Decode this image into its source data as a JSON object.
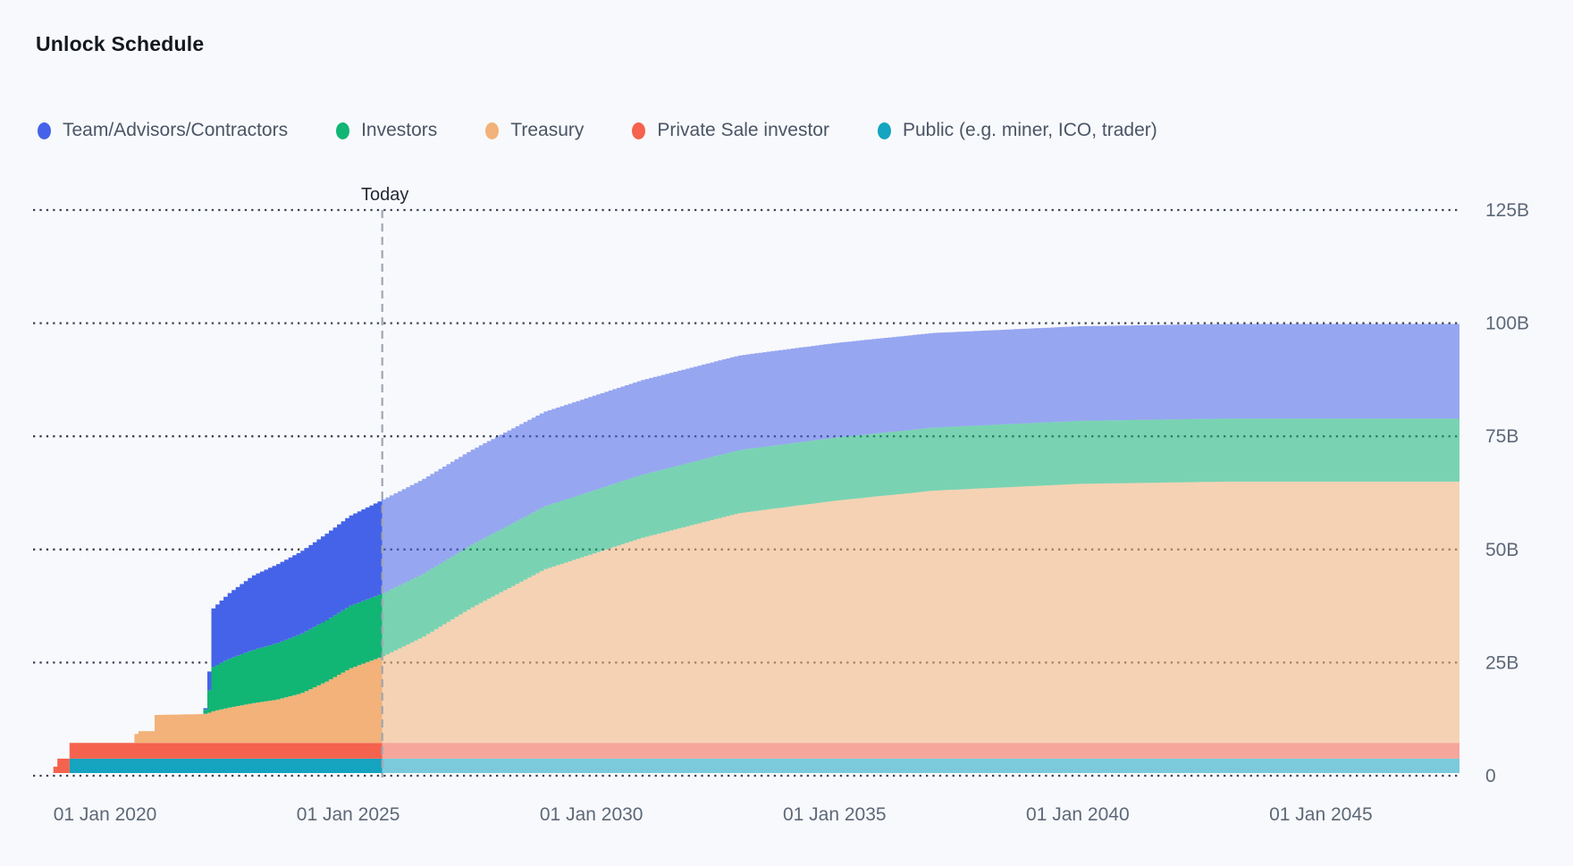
{
  "header": {
    "title": "Unlock Schedule"
  },
  "chart_data": {
    "type": "area",
    "title": "Unlock Schedule",
    "subtitle": "",
    "stacking": "cumulative unlocked token supply, stacked; series listed top-to-bottom of stack",
    "unit": "B",
    "x_range": [
      2018.52,
      2047.85
    ],
    "y_range": [
      0,
      125
    ],
    "grid": "dotted horizontal lines, labels on right",
    "legend_position": "top",
    "today": {
      "t": 2025.7,
      "label": "Today"
    },
    "series": [
      {
        "name": "Team/Advisors/Contractors",
        "color": "#4563e8"
      },
      {
        "name": "Investors",
        "color": "#11b574"
      },
      {
        "name": "Treasury",
        "color": "#f2b279"
      },
      {
        "name": "Private Sale investor",
        "color": "#f5624d"
      },
      {
        "name": "Public (e.g. miner, ICO, trader)",
        "color": "#14a4bf"
      }
    ],
    "samples": [
      {
        "t": 2018.52,
        "v": [
          0,
          0,
          0,
          0,
          0
        ]
      },
      {
        "t": 2018.87,
        "v": [
          0,
          0,
          0,
          0,
          0
        ]
      },
      {
        "t": 2018.9,
        "v": [
          0,
          0,
          0,
          1.4,
          0
        ]
      },
      {
        "t": 2018.98,
        "v": [
          0,
          0,
          0,
          1.4,
          0
        ]
      },
      {
        "t": 2019.02,
        "v": [
          0,
          0,
          0,
          3.2,
          0
        ]
      },
      {
        "t": 2019.22,
        "v": [
          0,
          0,
          0,
          3.2,
          0
        ]
      },
      {
        "t": 2019.27,
        "v": [
          0,
          0,
          0,
          3.5,
          3.2
        ]
      },
      {
        "t": 2020.55,
        "v": [
          0,
          0,
          0,
          3.5,
          3.2
        ]
      },
      {
        "t": 2020.62,
        "v": [
          0,
          0,
          2.6,
          3.5,
          3.2
        ]
      },
      {
        "t": 2020.96,
        "v": [
          0,
          0,
          2.6,
          3.5,
          3.2
        ]
      },
      {
        "t": 2021.02,
        "v": [
          0,
          0,
          6.2,
          3.5,
          3.2
        ]
      },
      {
        "t": 2022.0,
        "v": [
          0,
          0,
          6.4,
          3.5,
          3.2
        ]
      },
      {
        "t": 2022.08,
        "v": [
          1.5,
          3.5,
          6.6,
          3.5,
          3.2
        ]
      },
      {
        "t": 2022.18,
        "v": [
          13.0,
          9.8,
          7.0,
          3.5,
          3.2
        ]
      },
      {
        "t": 2022.5,
        "v": [
          14.5,
          10.8,
          7.8,
          3.5,
          3.2
        ]
      },
      {
        "t": 2023.0,
        "v": [
          16.5,
          11.8,
          8.8,
          3.5,
          3.2
        ]
      },
      {
        "t": 2023.5,
        "v": [
          17.5,
          12.5,
          9.6,
          3.5,
          3.2
        ]
      },
      {
        "t": 2024.0,
        "v": [
          18.3,
          13.2,
          11.0,
          3.5,
          3.2
        ]
      },
      {
        "t": 2024.5,
        "v": [
          19.2,
          13.6,
          13.5,
          3.5,
          3.2
        ]
      },
      {
        "t": 2025.0,
        "v": [
          20.0,
          13.9,
          16.5,
          3.5,
          3.2
        ]
      },
      {
        "t": 2025.7,
        "v": [
          20.8,
          14.0,
          19.3,
          3.5,
          3.2
        ]
      },
      {
        "t": 2026.5,
        "v": [
          21.0,
          14.0,
          23.5,
          3.5,
          3.2
        ]
      },
      {
        "t": 2027.5,
        "v": [
          21.0,
          14.0,
          30.0,
          3.5,
          3.2
        ]
      },
      {
        "t": 2029.0,
        "v": [
          21.0,
          14.0,
          38.5,
          3.5,
          3.2
        ]
      },
      {
        "t": 2031.0,
        "v": [
          21.0,
          14.0,
          45.5,
          3.5,
          3.2
        ]
      },
      {
        "t": 2033.0,
        "v": [
          21.0,
          14.0,
          51.0,
          3.5,
          3.2
        ]
      },
      {
        "t": 2035.0,
        "v": [
          21.0,
          14.0,
          53.8,
          3.5,
          3.2
        ]
      },
      {
        "t": 2037.0,
        "v": [
          21.0,
          14.0,
          56.0,
          3.5,
          3.2
        ]
      },
      {
        "t": 2040.0,
        "v": [
          21.0,
          14.0,
          57.5,
          3.5,
          3.2
        ]
      },
      {
        "t": 2043.0,
        "v": [
          21.0,
          14.0,
          58.0,
          3.5,
          3.2
        ]
      },
      {
        "t": 2047.85,
        "v": [
          21.0,
          14.0,
          58.0,
          3.5,
          3.2
        ]
      }
    ],
    "x_ticks": [
      {
        "t": 2020,
        "label": "01 Jan 2020"
      },
      {
        "t": 2025,
        "label": "01 Jan 2025"
      },
      {
        "t": 2030,
        "label": "01 Jan 2030"
      },
      {
        "t": 2035,
        "label": "01 Jan 2035"
      },
      {
        "t": 2040,
        "label": "01 Jan 2040"
      },
      {
        "t": 2045,
        "label": "01 Jan 2045"
      }
    ],
    "y_ticks": [
      {
        "value": 0,
        "label": "0"
      },
      {
        "value": 25,
        "label": "25B"
      },
      {
        "value": 50,
        "label": "50B"
      },
      {
        "value": 75,
        "label": "75B"
      },
      {
        "value": 100,
        "label": "100B"
      },
      {
        "value": 125,
        "label": "125B"
      }
    ],
    "colors": {
      "background": "#f8f9fc",
      "grid_dots": "#3c4352",
      "axis_text": "#5d6878",
      "legend_text": "#4a5565",
      "title_text": "#14181f",
      "today_line": "#a0a6b1",
      "today_text": "#242a35",
      "future_opacity": 0.55
    }
  }
}
